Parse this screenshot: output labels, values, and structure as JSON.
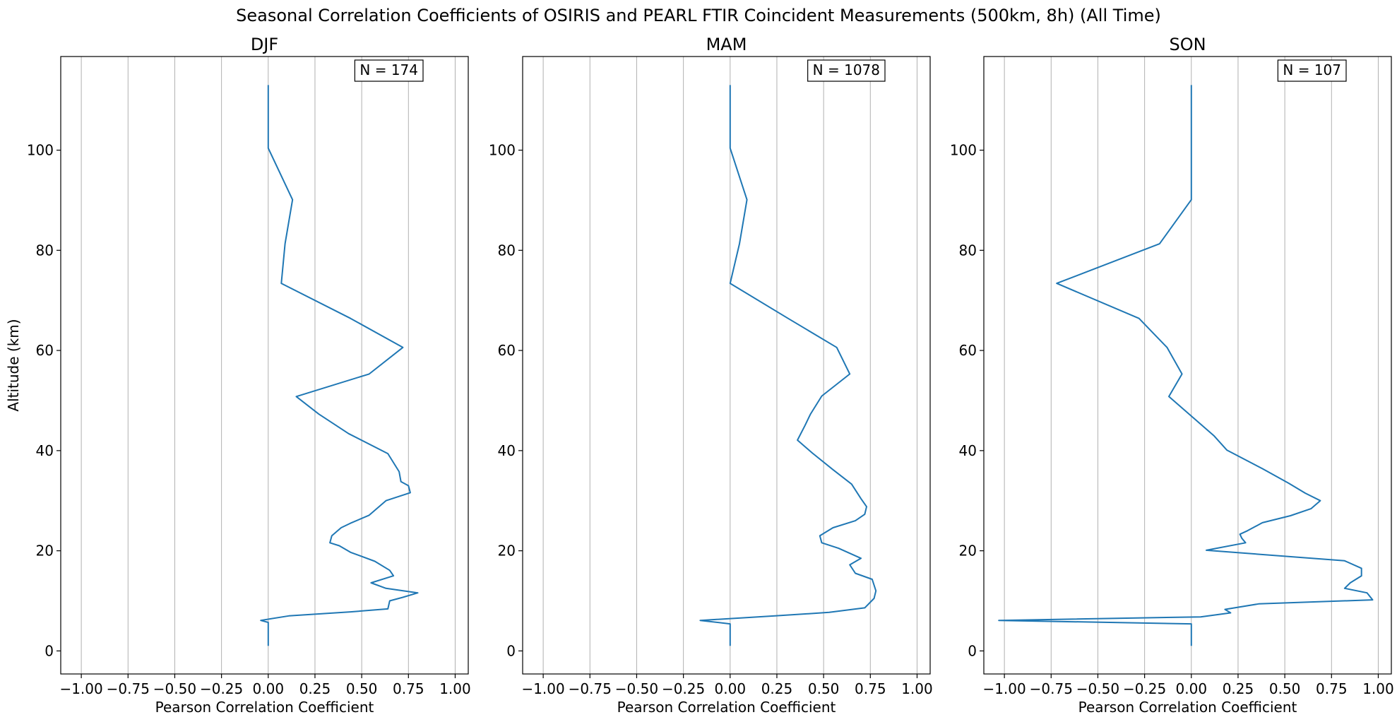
{
  "figure_title": "Seasonal Correlation Coefficients of OSIRIS and PEARL FTIR Coincident Measurements (500km, 8h) (All Time)",
  "chart_data": [
    {
      "type": "line",
      "title": "DJF",
      "annotation": "N = 174",
      "xlabel": "Pearson Correlation Coefficient",
      "ylabel": "Altitude (km)",
      "xlim": [
        -1.11,
        1.07
      ],
      "ylim": [
        -4.6,
        118.7
      ],
      "xticks": [
        -1.0,
        -0.75,
        -0.5,
        -0.25,
        0.0,
        0.25,
        0.5,
        0.75,
        1.0
      ],
      "xtick_labels": [
        "−1.00",
        "−0.75",
        "−0.50",
        "−0.25",
        "0.00",
        "0.25",
        "0.50",
        "0.75",
        "1.00"
      ],
      "yticks": [
        0,
        20,
        40,
        60,
        80,
        100
      ],
      "ytick_labels": [
        "0",
        "20",
        "40",
        "60",
        "80",
        "100"
      ],
      "grid": "x",
      "series": [
        {
          "color": "#1f77b4",
          "x": [
            0.0,
            0.0,
            -0.04,
            0.11,
            0.44,
            0.64,
            0.65,
            0.72,
            0.8,
            0.63,
            0.55,
            0.67,
            0.65,
            0.57,
            0.44,
            0.38,
            0.33,
            0.34,
            0.39,
            0.44,
            0.54,
            0.63,
            0.76,
            0.75,
            0.71,
            0.7,
            0.64,
            0.43,
            0.27,
            0.15,
            0.54,
            0.72,
            0.44,
            0.07,
            0.09,
            0.13,
            0.0,
            0.0
          ],
          "y": [
            1,
            5.7,
            6.1,
            7.0,
            7.8,
            8.4,
            10.0,
            10.7,
            11.6,
            12.5,
            13.6,
            15.0,
            16.1,
            17.9,
            19.7,
            21.0,
            21.6,
            23.0,
            24.6,
            25.5,
            27.1,
            30.0,
            31.6,
            33.0,
            33.8,
            35.8,
            39.4,
            43.4,
            47.3,
            50.8,
            55.3,
            60.6,
            66.4,
            73.4,
            81.3,
            90.1,
            100.4,
            113
          ]
        }
      ]
    },
    {
      "type": "line",
      "title": "MAM",
      "annotation": "N = 1078",
      "xlabel": "Pearson Correlation Coefficient",
      "ylabel": "",
      "xlim": [
        -1.11,
        1.07
      ],
      "ylim": [
        -4.6,
        118.7
      ],
      "xticks": [
        -1.0,
        -0.75,
        -0.5,
        -0.25,
        0.0,
        0.25,
        0.5,
        0.75,
        1.0
      ],
      "xtick_labels": [
        "−1.00",
        "−0.75",
        "−0.50",
        "−0.25",
        "0.00",
        "0.25",
        "0.50",
        "0.75",
        "1.00"
      ],
      "yticks": [
        0,
        20,
        40,
        60,
        80,
        100
      ],
      "ytick_labels": [
        "0",
        "20",
        "40",
        "60",
        "80",
        "100"
      ],
      "grid": "x",
      "series": [
        {
          "color": "#1f77b4",
          "x": [
            0.0,
            0.0,
            -0.16,
            0.24,
            0.53,
            0.72,
            0.77,
            0.78,
            0.76,
            0.67,
            0.64,
            0.7,
            0.58,
            0.49,
            0.48,
            0.55,
            0.67,
            0.72,
            0.73,
            0.7,
            0.65,
            0.55,
            0.44,
            0.36,
            0.4,
            0.43,
            0.49,
            0.64,
            0.57,
            0.31,
            0.0,
            0.05,
            0.09,
            0.0,
            0.0
          ],
          "y": [
            1,
            5.4,
            6.1,
            7.0,
            7.7,
            8.6,
            10.5,
            12.0,
            14.3,
            15.5,
            17.2,
            18.5,
            20.5,
            21.6,
            23.0,
            24.6,
            26.0,
            27.3,
            28.8,
            30.4,
            33.3,
            36.2,
            39.5,
            42.1,
            45.0,
            47.3,
            50.9,
            55.3,
            60.6,
            66.4,
            73.4,
            81.3,
            90.1,
            100.4,
            113
          ]
        }
      ]
    },
    {
      "type": "line",
      "title": "SON",
      "annotation": "N = 107",
      "xlabel": "Pearson Correlation Coefficient",
      "ylabel": "",
      "xlim": [
        -1.11,
        1.07
      ],
      "ylim": [
        -4.6,
        118.7
      ],
      "xticks": [
        -1.0,
        -0.75,
        -0.5,
        -0.25,
        0.0,
        0.25,
        0.5,
        0.75,
        1.0
      ],
      "xtick_labels": [
        "−1.00",
        "−0.75",
        "−0.50",
        "−0.25",
        "0.00",
        "0.25",
        "0.50",
        "0.75",
        "1.00"
      ],
      "yticks": [
        0,
        20,
        40,
        60,
        80,
        100
      ],
      "ytick_labels": [
        "0",
        "20",
        "40",
        "60",
        "80",
        "100"
      ],
      "grid": "x",
      "series": [
        {
          "color": "#1f77b4",
          "x": [
            0.0,
            0.0,
            -1.03,
            0.05,
            0.21,
            0.18,
            0.36,
            0.97,
            0.94,
            0.82,
            0.85,
            0.91,
            0.91,
            0.82,
            0.08,
            0.29,
            0.27,
            0.26,
            0.3,
            0.38,
            0.53,
            0.64,
            0.69,
            0.61,
            0.52,
            0.38,
            0.19,
            0.12,
            -0.12,
            -0.05,
            -0.13,
            -0.28,
            -0.72,
            -0.17,
            0.0,
            0.0
          ],
          "y": [
            1,
            5.4,
            6.1,
            6.8,
            7.6,
            8.3,
            9.4,
            10.2,
            11.6,
            12.5,
            13.6,
            15.0,
            16.5,
            18.0,
            20.1,
            21.6,
            22.5,
            23.3,
            24.0,
            25.6,
            27.0,
            28.4,
            30.0,
            31.5,
            33.5,
            36.4,
            40.1,
            43.0,
            50.8,
            55.3,
            60.6,
            66.4,
            73.4,
            81.3,
            90.1,
            113
          ]
        }
      ]
    }
  ]
}
